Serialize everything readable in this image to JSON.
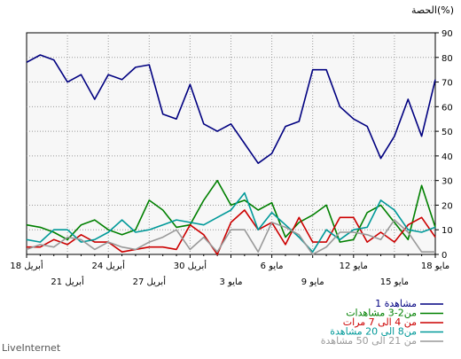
{
  "chart_data": {
    "type": "line",
    "ylabel": "الحصة(%)",
    "ylim": [
      0,
      90
    ],
    "yticks": [
      0,
      10,
      20,
      30,
      40,
      50,
      60,
      70,
      80,
      90
    ],
    "x_labels_row1": [
      "18 مايو",
      "12 مايو",
      "6 مايو",
      "30 أبريل",
      "24 أبريل",
      "18 أبريل"
    ],
    "x_labels_row2": [
      "15 مايو",
      "9 مايو",
      "3 مايو",
      "27 أبريل",
      "21 أبريل"
    ],
    "grid": true,
    "series": [
      {
        "name": "1 مشاهدة",
        "color": "#000080",
        "values": [
          71,
          48,
          63,
          48,
          39,
          52,
          55,
          60,
          75,
          75,
          54,
          52,
          41,
          37,
          45,
          53,
          50,
          53,
          69,
          55,
          57,
          77,
          76,
          71,
          73,
          63,
          73,
          70,
          79,
          81,
          78
        ]
      },
      {
        "name": "من2-3 مشاهدات",
        "color": "#008000",
        "values": [
          11,
          28,
          6,
          13,
          20,
          17,
          6,
          5,
          20,
          16,
          13,
          7,
          21,
          18,
          22,
          20,
          30,
          22,
          12,
          11,
          18,
          22,
          10,
          8,
          10,
          14,
          12,
          6,
          9,
          11,
          12
        ]
      },
      {
        "name": "من 4 الى 7 مرات",
        "color": "#cc0000",
        "values": [
          7,
          15,
          12,
          5,
          9,
          5,
          15,
          15,
          5,
          5,
          15,
          4,
          13,
          10,
          18,
          13,
          0,
          8,
          12,
          2,
          3,
          3,
          2,
          1,
          5,
          5,
          8,
          4,
          6,
          3,
          3
        ]
      },
      {
        "name": "من8 الى 20 مشاهدة",
        "color": "#009999",
        "values": [
          11,
          9,
          10,
          18,
          22,
          11,
          10,
          6,
          10,
          1,
          7,
          12,
          17,
          10,
          25,
          18,
          15,
          12,
          13,
          14,
          12,
          10,
          9,
          14,
          9,
          6,
          5,
          10,
          10,
          5,
          6
        ]
      },
      {
        "name": "من 21 الى 50 مشاهدة",
        "color": "#999999",
        "values": [
          1,
          1,
          9,
          14,
          6,
          8,
          9,
          9,
          3,
          0,
          8,
          11,
          13,
          1,
          10,
          10,
          1,
          7,
          2,
          10,
          7,
          5,
          2,
          3,
          5,
          2,
          6,
          7,
          3,
          4,
          2
        ]
      }
    ]
  },
  "branding": {
    "name": "LiveInternet"
  }
}
